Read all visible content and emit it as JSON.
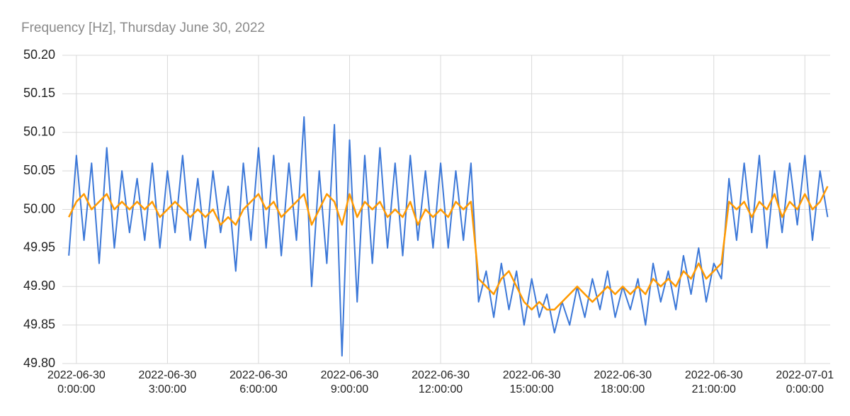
{
  "chart_data": {
    "type": "line",
    "title": "Frequency [Hz], Thursday June 30, 2022",
    "x": [
      "2022-06-29 23:45:00",
      "2022-06-30 0:00:00",
      "2022-06-30 0:15:00",
      "2022-06-30 0:30:00",
      "2022-06-30 0:45:00",
      "2022-06-30 1:00:00",
      "2022-06-30 1:15:00",
      "2022-06-30 1:30:00",
      "2022-06-30 1:45:00",
      "2022-06-30 2:00:00",
      "2022-06-30 2:15:00",
      "2022-06-30 2:30:00",
      "2022-06-30 2:45:00",
      "2022-06-30 3:00:00",
      "2022-06-30 3:15:00",
      "2022-06-30 3:30:00",
      "2022-06-30 3:45:00",
      "2022-06-30 4:00:00",
      "2022-06-30 4:15:00",
      "2022-06-30 4:30:00",
      "2022-06-30 4:45:00",
      "2022-06-30 5:00:00",
      "2022-06-30 5:15:00",
      "2022-06-30 5:30:00",
      "2022-06-30 5:45:00",
      "2022-06-30 6:00:00",
      "2022-06-30 6:15:00",
      "2022-06-30 6:30:00",
      "2022-06-30 6:45:00",
      "2022-06-30 7:00:00",
      "2022-06-30 7:15:00",
      "2022-06-30 7:30:00",
      "2022-06-30 7:45:00",
      "2022-06-30 8:00:00",
      "2022-06-30 8:15:00",
      "2022-06-30 8:30:00",
      "2022-06-30 8:45:00",
      "2022-06-30 9:00:00",
      "2022-06-30 9:15:00",
      "2022-06-30 9:30:00",
      "2022-06-30 9:45:00",
      "2022-06-30 10:00:00",
      "2022-06-30 10:15:00",
      "2022-06-30 10:30:00",
      "2022-06-30 10:45:00",
      "2022-06-30 11:00:00",
      "2022-06-30 11:15:00",
      "2022-06-30 11:30:00",
      "2022-06-30 11:45:00",
      "2022-06-30 12:00:00",
      "2022-06-30 12:15:00",
      "2022-06-30 12:30:00",
      "2022-06-30 12:45:00",
      "2022-06-30 13:00:00",
      "2022-06-30 13:15:00",
      "2022-06-30 13:30:00",
      "2022-06-30 13:45:00",
      "2022-06-30 14:00:00",
      "2022-06-30 14:15:00",
      "2022-06-30 14:30:00",
      "2022-06-30 14:45:00",
      "2022-06-30 15:00:00",
      "2022-06-30 15:15:00",
      "2022-06-30 15:30:00",
      "2022-06-30 15:45:00",
      "2022-06-30 16:00:00",
      "2022-06-30 16:15:00",
      "2022-06-30 16:30:00",
      "2022-06-30 16:45:00",
      "2022-06-30 17:00:00",
      "2022-06-30 17:15:00",
      "2022-06-30 17:30:00",
      "2022-06-30 17:45:00",
      "2022-06-30 18:00:00",
      "2022-06-30 18:15:00",
      "2022-06-30 18:30:00",
      "2022-06-30 18:45:00",
      "2022-06-30 19:00:00",
      "2022-06-30 19:15:00",
      "2022-06-30 19:30:00",
      "2022-06-30 19:45:00",
      "2022-06-30 20:00:00",
      "2022-06-30 20:15:00",
      "2022-06-30 20:30:00",
      "2022-06-30 20:45:00",
      "2022-06-30 21:00:00",
      "2022-06-30 21:15:00",
      "2022-06-30 21:30:00",
      "2022-06-30 21:45:00",
      "2022-06-30 22:00:00",
      "2022-06-30 22:15:00",
      "2022-06-30 22:30:00",
      "2022-06-30 22:45:00",
      "2022-06-30 23:00:00",
      "2022-06-30 23:15:00",
      "2022-06-30 23:30:00",
      "2022-06-30 23:45:00",
      "2022-07-01 0:00:00",
      "2022-07-01 0:15:00",
      "2022-07-01 0:30:00",
      "2022-07-01 0:45:00"
    ],
    "series": [
      {
        "color": "#3c78d8",
        "values": [
          49.94,
          50.07,
          49.96,
          50.06,
          49.93,
          50.08,
          49.95,
          50.05,
          49.97,
          50.04,
          49.96,
          50.06,
          49.95,
          50.05,
          49.97,
          50.07,
          49.96,
          50.04,
          49.95,
          50.05,
          49.97,
          50.03,
          49.92,
          50.06,
          49.96,
          50.08,
          49.95,
          50.07,
          49.94,
          50.06,
          49.96,
          50.12,
          49.9,
          50.05,
          49.93,
          50.11,
          49.81,
          50.09,
          49.88,
          50.07,
          49.93,
          50.08,
          49.95,
          50.06,
          49.94,
          50.07,
          49.96,
          50.05,
          49.95,
          50.06,
          49.95,
          50.05,
          49.96,
          50.06,
          49.88,
          49.92,
          49.86,
          49.93,
          49.87,
          49.92,
          49.85,
          49.91,
          49.86,
          49.89,
          49.84,
          49.88,
          49.85,
          49.9,
          49.86,
          49.91,
          49.87,
          49.92,
          49.86,
          49.9,
          49.87,
          49.91,
          49.85,
          49.93,
          49.88,
          49.92,
          49.87,
          49.94,
          49.89,
          49.95,
          49.88,
          49.93,
          49.91,
          50.04,
          49.96,
          50.06,
          49.97,
          50.07,
          49.95,
          50.05,
          49.97,
          50.06,
          49.98,
          50.07,
          49.96,
          50.05,
          49.99
        ]
      },
      {
        "color": "#ff9900",
        "values": [
          49.99,
          50.01,
          50.02,
          50.0,
          50.01,
          50.02,
          50.0,
          50.01,
          50.0,
          50.01,
          50.0,
          50.01,
          49.99,
          50.0,
          50.01,
          50.0,
          49.99,
          50.0,
          49.99,
          50.0,
          49.98,
          49.99,
          49.98,
          50.0,
          50.01,
          50.02,
          50.0,
          50.01,
          49.99,
          50.0,
          50.01,
          50.02,
          49.98,
          50.0,
          50.02,
          50.01,
          49.98,
          50.02,
          49.99,
          50.01,
          50.0,
          50.01,
          49.99,
          50.0,
          49.99,
          50.01,
          49.98,
          50.0,
          49.99,
          50.0,
          49.99,
          50.01,
          50.0,
          50.01,
          49.91,
          49.9,
          49.89,
          49.91,
          49.92,
          49.9,
          49.88,
          49.87,
          49.88,
          49.87,
          49.87,
          49.88,
          49.89,
          49.9,
          49.89,
          49.88,
          49.89,
          49.9,
          49.89,
          49.9,
          49.89,
          49.9,
          49.89,
          49.91,
          49.9,
          49.91,
          49.9,
          49.92,
          49.91,
          49.93,
          49.91,
          49.92,
          49.93,
          50.01,
          50.0,
          50.01,
          49.99,
          50.01,
          50.0,
          50.02,
          49.99,
          50.01,
          50.0,
          50.02,
          50.0,
          50.01,
          50.03
        ]
      }
    ],
    "xlim": [
      "2022-06-29 23:35:00",
      "2022-07-01 0:50:00"
    ],
    "xticks": [
      "2022-06-30 0:00:00",
      "2022-06-30 3:00:00",
      "2022-06-30 6:00:00",
      "2022-06-30 9:00:00",
      "2022-06-30 12:00:00",
      "2022-06-30 15:00:00",
      "2022-06-30 18:00:00",
      "2022-06-30 21:00:00",
      "2022-07-01 0:00:00"
    ],
    "ylim": [
      49.8,
      50.2
    ],
    "yticks": [
      {
        "value": 49.8,
        "label": "49.80"
      },
      49.85,
      {
        "value": 49.9,
        "label": "49.90"
      },
      49.95,
      {
        "value": 50,
        "label": "50.00"
      },
      50.05,
      {
        "value": 50.1,
        "label": "50.10"
      },
      50.15,
      {
        "value": 50.2,
        "label": "50.20"
      }
    ],
    "grid": true
  }
}
